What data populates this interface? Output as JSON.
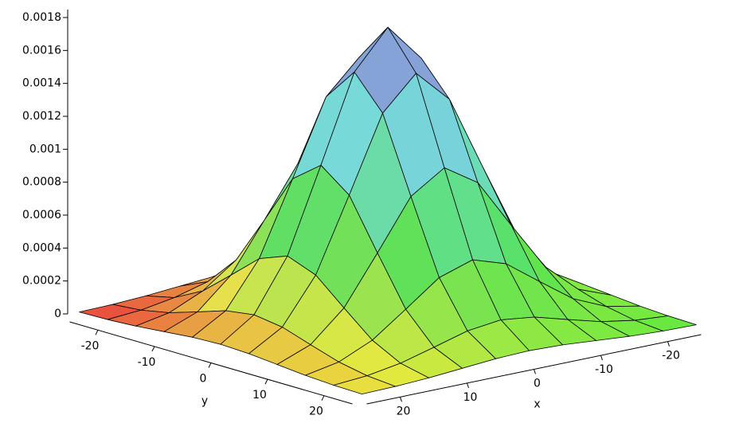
{
  "chart_data": {
    "type": "surface",
    "xlabel": "x",
    "ylabel": "y",
    "x": [
      -25,
      -20,
      -15,
      -10,
      -5,
      0,
      5,
      10,
      15,
      20,
      25
    ],
    "y": [
      -25,
      -20,
      -15,
      -10,
      -5,
      0,
      5,
      10,
      15,
      20,
      25
    ],
    "z": [
      [
        2e-06,
        6e-06,
        1.6e-05,
        3.2e-05,
        4.8e-05,
        5.5e-05,
        4.8e-05,
        3.2e-05,
        1.6e-05,
        6e-06,
        2e-06
      ],
      [
        6e-06,
        2.1e-05,
        5.5e-05,
        0.00011,
        0.000167,
        0.000192,
        0.000167,
        0.00011,
        5.5e-05,
        2.1e-05,
        6e-06
      ],
      [
        1.6e-05,
        5.5e-05,
        0.000145,
        0.000291,
        0.000441,
        0.000507,
        0.000441,
        0.000291,
        0.000145,
        5.5e-05,
        1.6e-05
      ],
      [
        3.2e-05,
        0.00011,
        0.000291,
        0.000583,
        0.000884,
        0.001016,
        0.000884,
        0.000583,
        0.000291,
        0.00011,
        3.2e-05
      ],
      [
        4.8e-05,
        0.000167,
        0.000441,
        0.000884,
        0.00134,
        0.00154,
        0.00134,
        0.000884,
        0.000441,
        0.000167,
        4.8e-05
      ],
      [
        5.5e-05,
        0.000192,
        0.000507,
        0.001016,
        0.00154,
        0.00177,
        0.00154,
        0.001016,
        0.000507,
        0.000192,
        5.5e-05
      ],
      [
        4.8e-05,
        0.000167,
        0.000441,
        0.000884,
        0.00134,
        0.00154,
        0.00134,
        0.000884,
        0.000441,
        0.000167,
        4.8e-05
      ],
      [
        3.2e-05,
        0.00011,
        0.000291,
        0.000583,
        0.000884,
        0.001016,
        0.000884,
        0.000583,
        0.000291,
        0.00011,
        3.2e-05
      ],
      [
        1.6e-05,
        5.5e-05,
        0.000145,
        0.000291,
        0.000441,
        0.000507,
        0.000441,
        0.000291,
        0.000145,
        5.5e-05,
        1.6e-05
      ],
      [
        6e-06,
        2.1e-05,
        5.5e-05,
        0.00011,
        0.000167,
        0.000192,
        0.000167,
        0.00011,
        5.5e-05,
        2.1e-05,
        6e-06
      ],
      [
        2e-06,
        6e-06,
        1.6e-05,
        3.2e-05,
        4.8e-05,
        5.5e-05,
        4.8e-05,
        3.2e-05,
        1.6e-05,
        6e-06,
        2e-06
      ]
    ],
    "xlim": [
      -25,
      25
    ],
    "ylim": [
      -25,
      25
    ],
    "zlim": [
      0,
      0.0018
    ],
    "xticks": [
      -20,
      -10,
      0,
      10,
      20
    ],
    "yticks": [
      -20,
      -10,
      0,
      10,
      20
    ],
    "zticks": [
      0,
      0.0002,
      0.0004,
      0.0006,
      0.0008,
      0.001,
      0.0012,
      0.0014,
      0.0016,
      0.0018
    ]
  }
}
